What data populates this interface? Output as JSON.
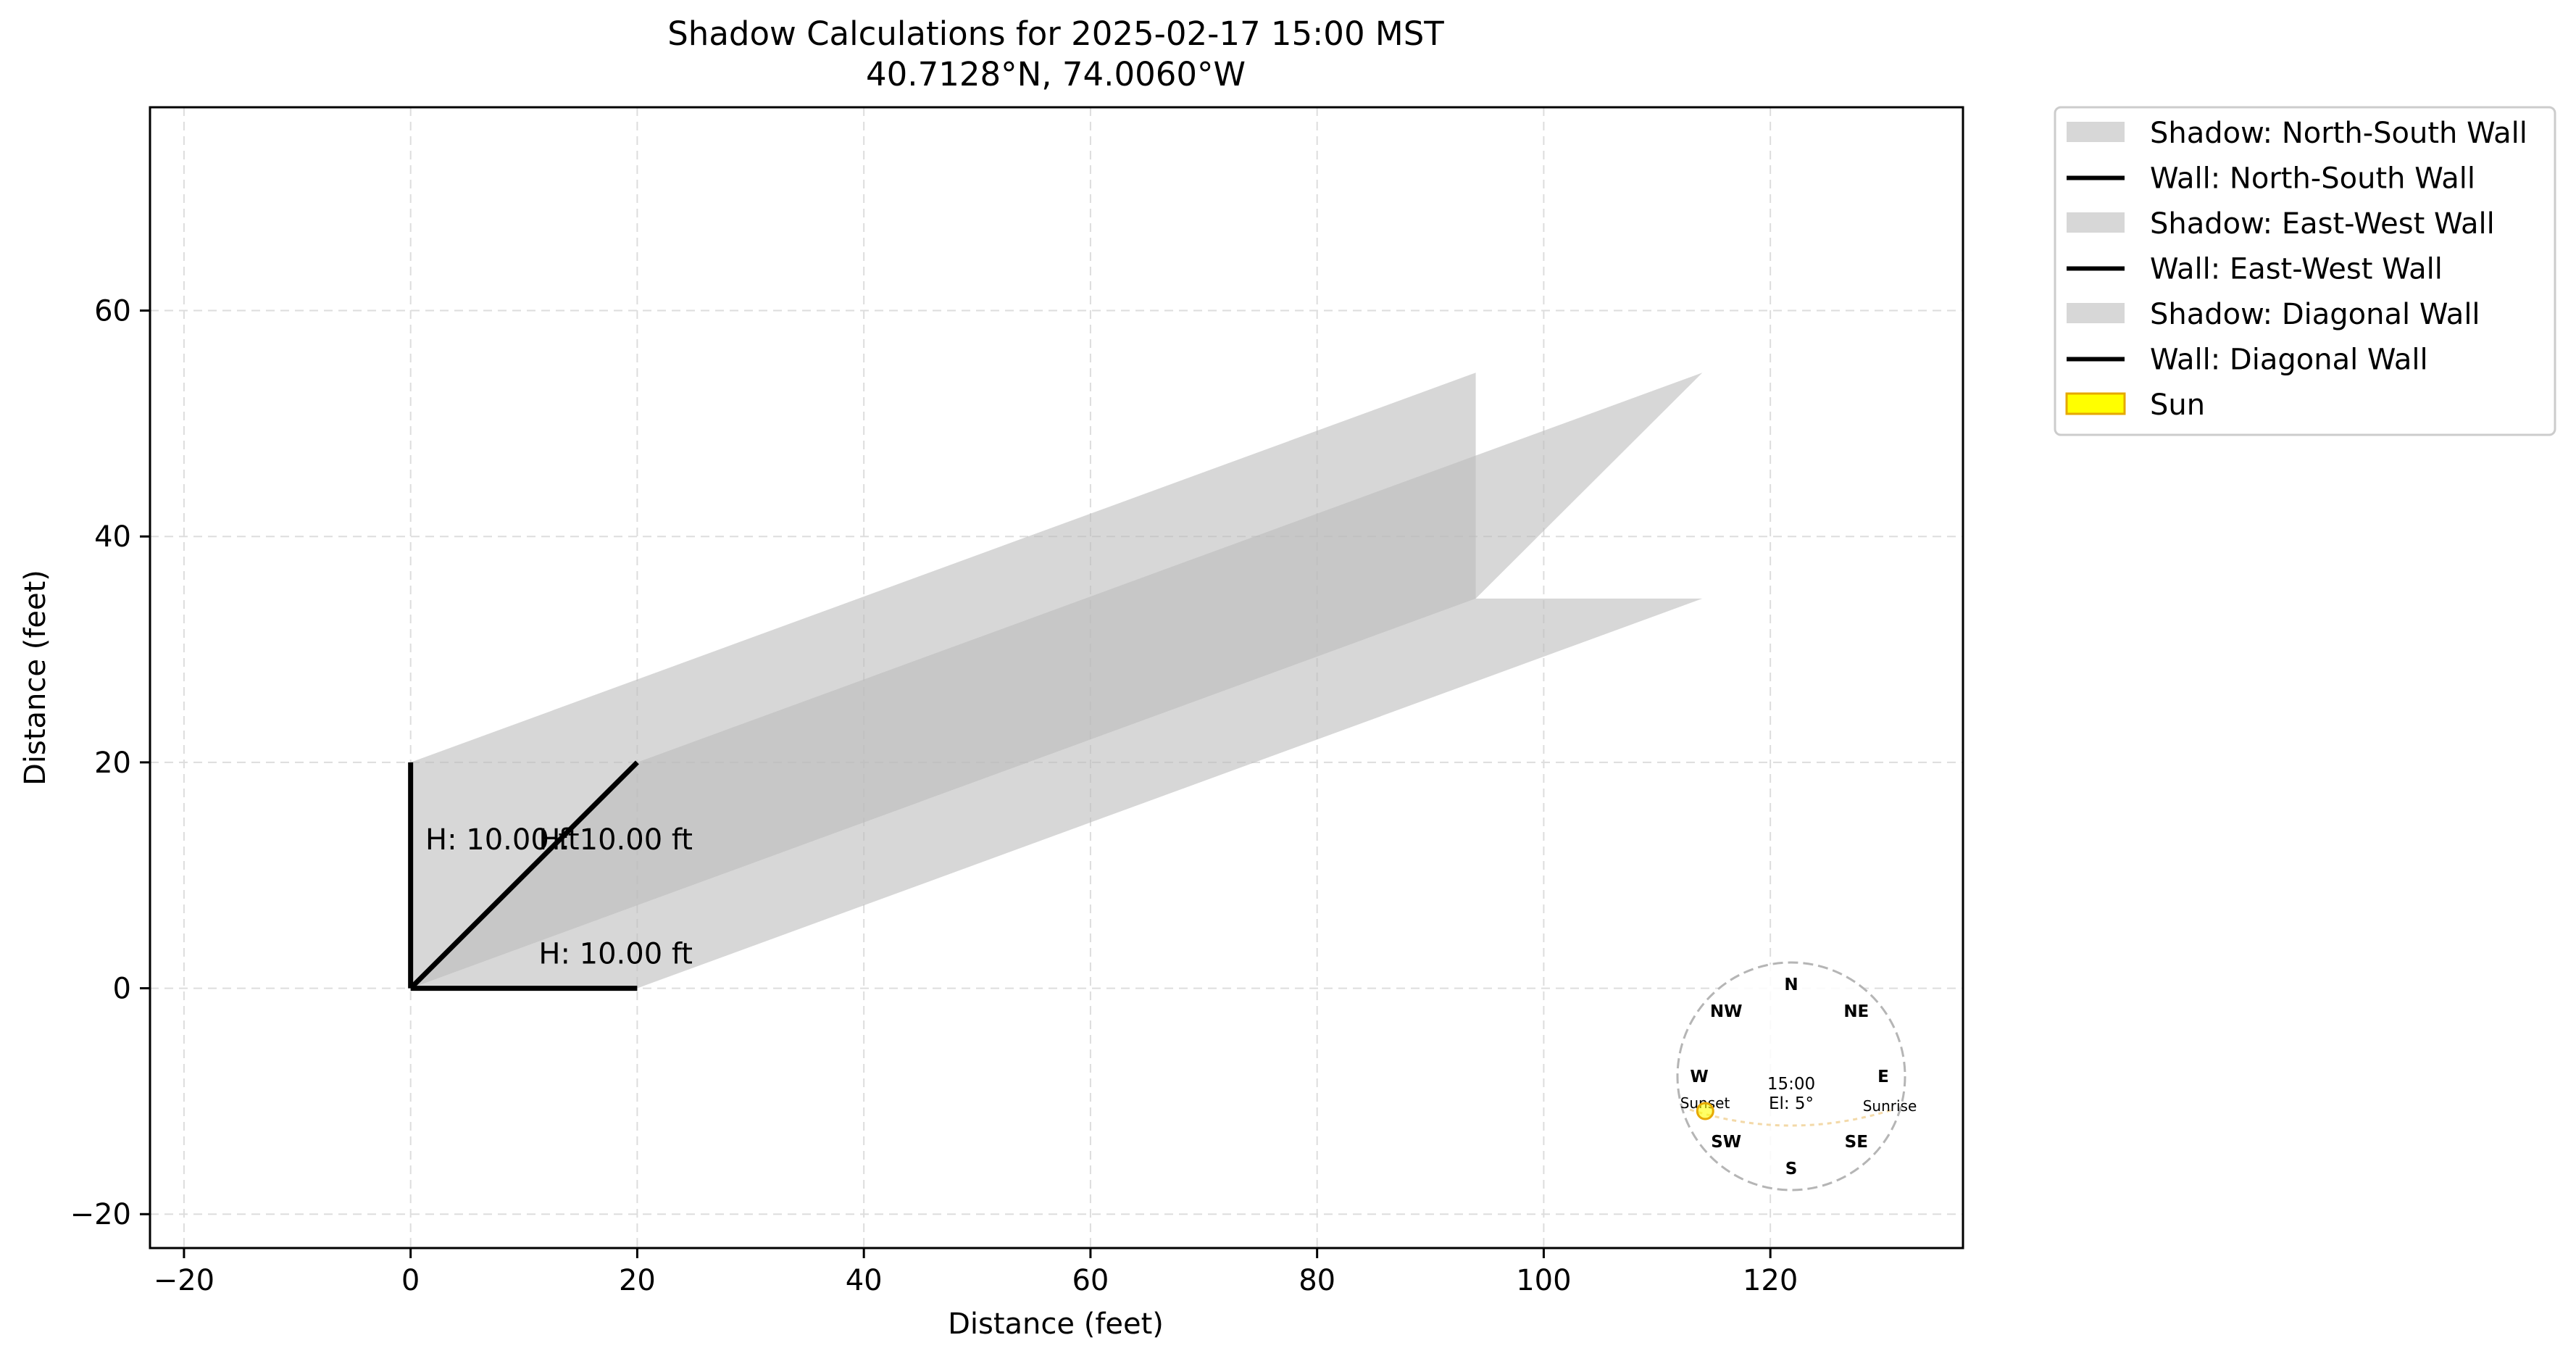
{
  "chart_data": {
    "type": "area",
    "title": "Shadow Calculations for 2025-02-17 15:00 MST",
    "subtitle": "40.7128°N, 74.0060°W",
    "xlabel": "Distance (feet)",
    "ylabel": "Distance (feet)",
    "xlim": [
      -23,
      137
    ],
    "ylim": [
      -23,
      78
    ],
    "x_ticks": [
      -20,
      0,
      20,
      40,
      60,
      80,
      100,
      120
    ],
    "x_tick_labels": [
      "−20",
      "0",
      "20",
      "40",
      "60",
      "80",
      "100",
      "120"
    ],
    "y_ticks": [
      -20,
      0,
      20,
      40,
      60
    ],
    "y_tick_labels": [
      "−20",
      "0",
      "20",
      "40",
      "60"
    ],
    "grid": true,
    "legend_position": "outside-top-right",
    "colors": {
      "shadow": "#bdbdbd",
      "wall": "#000000",
      "sun_fill": "#ffff00",
      "sun_edge": "#e6a800",
      "grid": "#dddddd"
    },
    "shadows": [
      {
        "name": "Shadow: North-South Wall",
        "polygon": [
          [
            0,
            0
          ],
          [
            0,
            20
          ],
          [
            94,
            54.5
          ],
          [
            94,
            34.5
          ]
        ]
      },
      {
        "name": "Shadow: East-West Wall",
        "polygon": [
          [
            0,
            0
          ],
          [
            20,
            0
          ],
          [
            114,
            34.5
          ],
          [
            94,
            34.5
          ]
        ]
      },
      {
        "name": "Shadow: Diagonal Wall",
        "polygon": [
          [
            0,
            0
          ],
          [
            20,
            20
          ],
          [
            114,
            54.5
          ],
          [
            94,
            34.5
          ]
        ]
      }
    ],
    "walls": [
      {
        "name": "Wall: North-South Wall",
        "points": [
          [
            0,
            0
          ],
          [
            0,
            20
          ]
        ]
      },
      {
        "name": "Wall: East-West Wall",
        "points": [
          [
            0,
            0
          ],
          [
            20,
            0
          ]
        ]
      },
      {
        "name": "Wall: Diagonal Wall",
        "points": [
          [
            0,
            0
          ],
          [
            20,
            20
          ]
        ]
      }
    ],
    "annotations": [
      {
        "text": "H: 10.00 ft",
        "x": 1.3,
        "y": 12.3
      },
      {
        "text": "H: 10.00 ft",
        "x": 11.3,
        "y": 12.3
      },
      {
        "text": "H: 10.00 ft",
        "x": 11.3,
        "y": 2.2
      }
    ],
    "legend": [
      {
        "label": "Shadow: North-South Wall",
        "kind": "patch"
      },
      {
        "label": "Wall: North-South Wall",
        "kind": "line"
      },
      {
        "label": "Shadow: East-West Wall",
        "kind": "patch"
      },
      {
        "label": "Wall: East-West Wall",
        "kind": "line"
      },
      {
        "label": "Shadow: Diagonal Wall",
        "kind": "patch"
      },
      {
        "label": "Wall: Diagonal Wall",
        "kind": "line"
      },
      {
        "label": "Sun",
        "kind": "sun"
      }
    ],
    "compass": {
      "directions": [
        "N",
        "NE",
        "E",
        "SE",
        "S",
        "SW",
        "W",
        "NW"
      ],
      "time_label": "15:00",
      "elevation_label": "El: 5°",
      "sunrise_label": "Sunrise",
      "sunset_label": "Sunset",
      "sun_azimuth_deg": 245
    }
  }
}
